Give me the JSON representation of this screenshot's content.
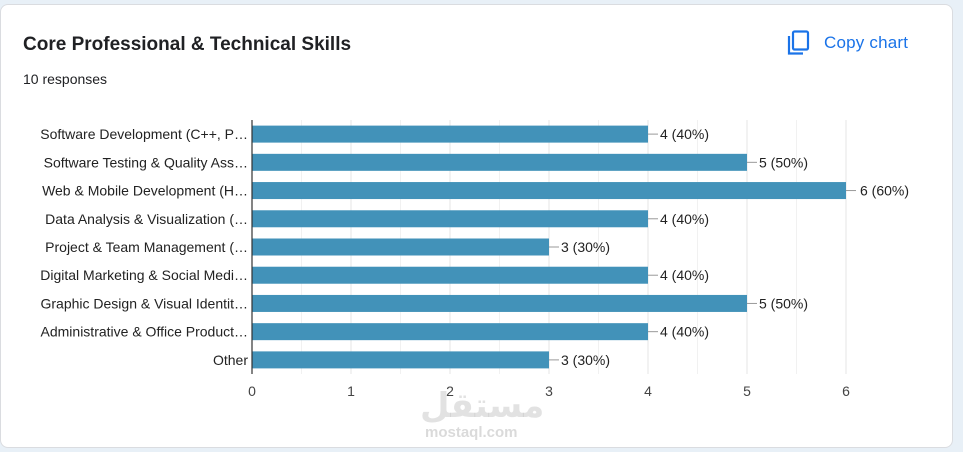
{
  "header": {
    "title": "Core Professional & Technical Skills",
    "responses": "10 responses",
    "copy_label": "Copy chart"
  },
  "watermark": {
    "arabic": "مستقل",
    "latin": "mostaql.com"
  },
  "colors": {
    "bar": "#4292b9",
    "accent": "#1a73e8",
    "grid": "#e4e4e4"
  },
  "chart_data": {
    "type": "bar",
    "orientation": "horizontal",
    "categories": [
      "Software Development (C++, P…",
      "Software Testing & Quality Ass…",
      "Web & Mobile Development (H…",
      "Data Analysis & Visualization (…",
      "Project & Team Management (…",
      "Digital Marketing & Social Medi…",
      "Graphic Design & Visual Identit…",
      "Administrative & Office Product…",
      "Other"
    ],
    "values": [
      4,
      5,
      6,
      4,
      3,
      4,
      5,
      4,
      3
    ],
    "data_labels": [
      "4 (40%)",
      "5 (50%)",
      "6 (60%)",
      "4 (40%)",
      "3 (30%)",
      "4 (40%)",
      "5 (50%)",
      "4 (40%)",
      "3 (30%)"
    ],
    "xlim": [
      0,
      6
    ],
    "xticks": [
      "0",
      "1",
      "2",
      "3",
      "4",
      "5",
      "6"
    ],
    "grid": true
  }
}
